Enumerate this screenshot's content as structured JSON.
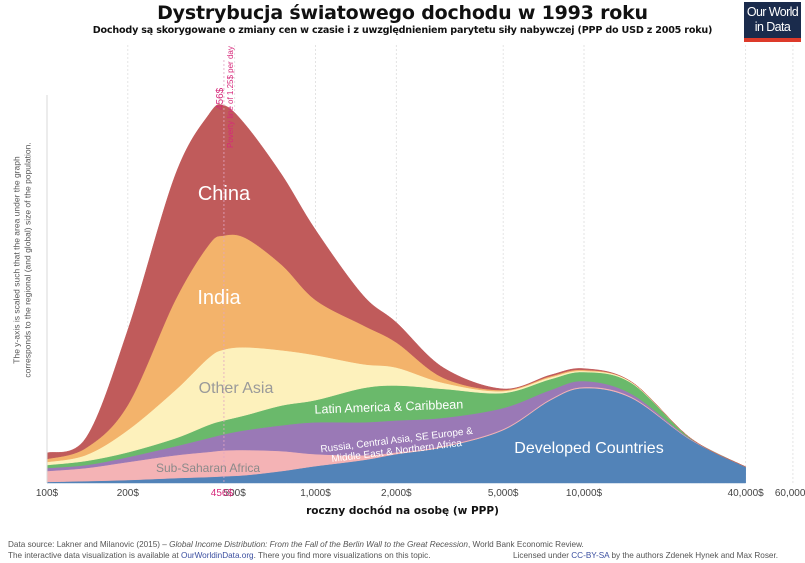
{
  "header": {
    "title": "Dystrybucja światowego dochodu w 1993 roku",
    "subtitle": "Dochody są skorygowane o zmiany cen w czasie i z uwzględnieniem parytetu siły nabywczej (PPP do USD z 2005 roku)"
  },
  "logo": {
    "line1": "Our World",
    "line2": "in Data"
  },
  "footer": {
    "source_prefix": "Data source: Lakner and Milanovic (2015) – ",
    "source_title": "Global Income Distribution: From the Fall of the Berlin Wall to the Great Recession",
    "source_suffix": ", World Bank Economic Review.",
    "interactive_prefix": "The interactive data visualization is available at ",
    "interactive_link": "OurWorldinData.org",
    "interactive_suffix": ". There you find more visualizations on this topic.",
    "license_prefix": "Licensed under ",
    "license_link": "CC-BY-SA",
    "license_suffix": " by the authors Zdenek Hynek and Max Roser."
  },
  "chart_data": {
    "type": "area",
    "stacked": true,
    "title": "Dystrybucja światowego dochodu w 1993 roku",
    "subtitle": "Dochody są skorygowane o zmiany cen w czasie i z uwzględnieniem parytetu siły nabywczej (PPP do USD z 2005 roku)",
    "xlabel": "roczny dochód na osobę (w PPP)",
    "ylabel_line1": "The y-axis is scaled such that the area under the graph",
    "ylabel_line2": "corresponds to the regional (and global) size of the population.",
    "x_scale": "log",
    "xlim": [
      100,
      60000
    ],
    "ylim": [
      0,
      100
    ],
    "y_units": "relative population density (peak = 100)",
    "grid": "vertical dotted at x ticks",
    "x_ticks": [
      {
        "value": 100,
        "label": "100$"
      },
      {
        "value": 200,
        "label": "200$"
      },
      {
        "value": 500,
        "label": "500$"
      },
      {
        "value": 1000,
        "label": "1,000$"
      },
      {
        "value": 2000,
        "label": "2,000$"
      },
      {
        "value": 5000,
        "label": "5,000$"
      },
      {
        "value": 10000,
        "label": "10,000$"
      },
      {
        "value": 40000,
        "label": "40,000$"
      },
      {
        "value": 60000,
        "label": "60,000$"
      }
    ],
    "poverty_line": {
      "value": 456,
      "tick_label": "456$",
      "top_label": "456$",
      "annotation": "Poverty line of 1.25$ per day",
      "color": "#d6287a"
    },
    "x": [
      100,
      140,
      200,
      300,
      400,
      456,
      550,
      750,
      1000,
      1500,
      2000,
      3000,
      5000,
      7500,
      10000,
      15000,
      25000,
      40000
    ],
    "series": [
      {
        "name": "Developed Countries",
        "label": "Developed Countries",
        "color": "#5283b8",
        "values": [
          0.3,
          0.5,
          0.8,
          1.3,
          1.6,
          1.8,
          2.1,
          3.2,
          4.5,
          6.1,
          7.7,
          9.6,
          14.1,
          22.1,
          25.3,
          22.7,
          11.5,
          4.3
        ]
      },
      {
        "name": "Sub-Saharan Africa",
        "label": "Sub-Saharan Africa",
        "color": "#f4b3b5",
        "values": [
          2.9,
          3.5,
          4.8,
          6.1,
          6.7,
          6.9,
          6.7,
          5.3,
          3.2,
          1.3,
          0.5,
          0.3,
          0.3,
          0.3,
          0.3,
          0.3,
          0.1,
          0.0
        ]
      },
      {
        "name": "Russia, Central Asia, SE Europe & Middle East & Northern Africa",
        "label_line1": "Russia, Central Asia, SE Europe &",
        "label_line2": "Middle East & Northern Africa",
        "color": "#9a79b6",
        "values": [
          0.8,
          0.8,
          1.3,
          2.4,
          3.7,
          4.3,
          5.3,
          6.9,
          8.5,
          8.8,
          8.5,
          7.5,
          5.6,
          2.4,
          1.6,
          0.8,
          0.1,
          0.0
        ]
      },
      {
        "name": "Latin America & Caribbean",
        "label": "Latin America & Caribbean",
        "color": "#6ab96b",
        "values": [
          0.8,
          1.1,
          1.3,
          2.1,
          3.5,
          3.7,
          4.0,
          5.3,
          5.9,
          9.1,
          9.3,
          7.7,
          4.0,
          2.9,
          2.4,
          2.9,
          0.2,
          0.0
        ]
      },
      {
        "name": "Other Asia",
        "label": "Other Asia",
        "color": "#fdf1bc",
        "values": [
          0.8,
          1.6,
          5.9,
          12.8,
          17.9,
          18.9,
          18.1,
          14.7,
          12.0,
          6.4,
          4.8,
          1.6,
          0.5,
          0.5,
          0.3,
          0.3,
          0.0,
          0.0
        ]
      },
      {
        "name": "India",
        "label": "India",
        "color": "#f3b36b",
        "values": [
          0.8,
          1.9,
          6.7,
          24.0,
          30.1,
          30.4,
          29.1,
          22.7,
          14.7,
          10.4,
          6.7,
          1.3,
          0.3,
          0.3,
          0.3,
          0.0,
          0.0,
          0.0
        ]
      },
      {
        "name": "China",
        "label": "China",
        "color": "#c05b5b",
        "values": [
          1.6,
          2.7,
          20.0,
          33.3,
          34.7,
          34.7,
          30.1,
          24.0,
          18.7,
          8.0,
          5.3,
          2.7,
          0.3,
          0.3,
          0.3,
          0.0,
          0.0,
          0.0
        ]
      }
    ]
  }
}
